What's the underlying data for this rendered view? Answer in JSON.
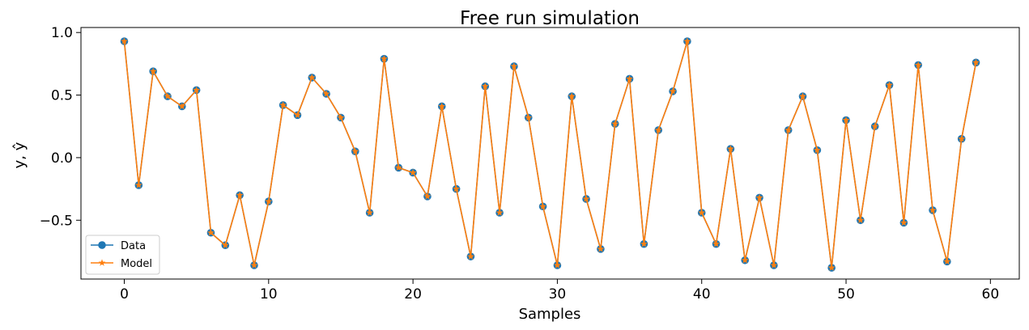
{
  "chart_data": {
    "type": "line",
    "title": "Free run simulation",
    "xlabel": "Samples",
    "ylabel": "y, ŷ",
    "xlim": [
      -3,
      62
    ],
    "ylim": [
      -0.97,
      1.04
    ],
    "xticks": [
      0,
      10,
      20,
      30,
      40,
      50,
      60
    ],
    "xtick_labels": [
      "0",
      "10",
      "20",
      "30",
      "40",
      "50",
      "60"
    ],
    "yticks": [
      -0.5,
      0.0,
      0.5,
      1.0
    ],
    "ytick_labels": [
      "−0.5",
      "0.0",
      "0.5",
      "1.0"
    ],
    "grid": false,
    "legend_position": "lower-left",
    "x": [
      0,
      1,
      2,
      3,
      4,
      5,
      6,
      7,
      8,
      9,
      10,
      11,
      12,
      13,
      14,
      15,
      16,
      17,
      18,
      19,
      20,
      21,
      22,
      23,
      24,
      25,
      26,
      27,
      28,
      29,
      30,
      31,
      32,
      33,
      34,
      35,
      36,
      37,
      38,
      39,
      40,
      41,
      42,
      43,
      44,
      45,
      46,
      47,
      48,
      49,
      50,
      51,
      52,
      53,
      54,
      55,
      56,
      57,
      58,
      59
    ],
    "series": [
      {
        "name": "Data",
        "color": "#1f77b4",
        "marker": "circle",
        "values": [
          0.93,
          -0.22,
          0.69,
          0.49,
          0.41,
          0.54,
          -0.6,
          -0.7,
          -0.3,
          -0.86,
          -0.35,
          0.42,
          0.34,
          0.64,
          0.51,
          0.32,
          0.05,
          -0.44,
          0.79,
          -0.08,
          -0.12,
          -0.31,
          0.41,
          -0.25,
          -0.79,
          0.57,
          -0.44,
          0.73,
          0.32,
          -0.39,
          -0.86,
          0.49,
          -0.33,
          -0.73,
          0.27,
          0.63,
          -0.69,
          0.22,
          0.53,
          0.93,
          -0.44,
          -0.69,
          0.07,
          -0.82,
          -0.32,
          -0.86,
          0.22,
          0.49,
          0.06,
          -0.88,
          0.3,
          -0.5,
          0.25,
          0.58,
          -0.52,
          0.74,
          -0.42,
          -0.83,
          0.15,
          0.76
        ]
      },
      {
        "name": "Model",
        "color": "#ff7f0e",
        "marker": "star",
        "values": [
          0.93,
          -0.22,
          0.69,
          0.49,
          0.41,
          0.54,
          -0.6,
          -0.7,
          -0.3,
          -0.86,
          -0.35,
          0.42,
          0.34,
          0.64,
          0.51,
          0.32,
          0.05,
          -0.44,
          0.79,
          -0.08,
          -0.12,
          -0.31,
          0.41,
          -0.25,
          -0.79,
          0.57,
          -0.44,
          0.73,
          0.32,
          -0.39,
          -0.86,
          0.49,
          -0.33,
          -0.73,
          0.27,
          0.63,
          -0.69,
          0.22,
          0.53,
          0.93,
          -0.44,
          -0.69,
          0.07,
          -0.82,
          -0.32,
          -0.86,
          0.22,
          0.49,
          0.06,
          -0.88,
          0.3,
          -0.5,
          0.25,
          0.58,
          -0.52,
          0.74,
          -0.42,
          -0.83,
          0.15,
          0.76
        ]
      }
    ]
  }
}
